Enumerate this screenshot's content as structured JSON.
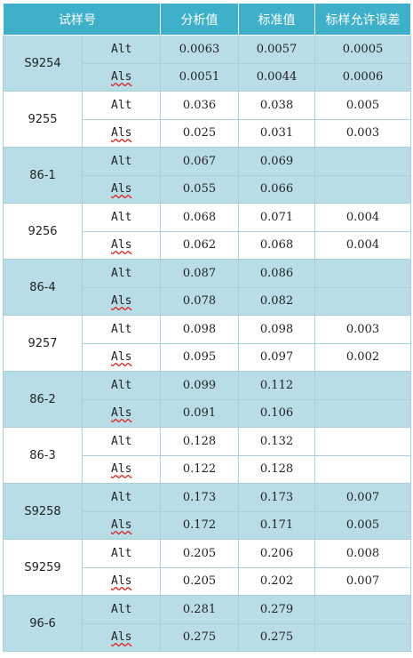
{
  "headers": [
    "试样号",
    "",
    "分析值",
    "标准值",
    "标样允许误差"
  ],
  "groups": [
    {
      "sample": "S9254",
      "rows": [
        {
          "element": "Alt",
          "analysis": "0.0063",
          "standard": "0.0057",
          "tolerance": "0.0005"
        },
        {
          "element": "Als",
          "analysis": "0.0051",
          "standard": "0.0044",
          "tolerance": "0.0006"
        }
      ]
    },
    {
      "sample": "9255",
      "rows": [
        {
          "element": "Alt",
          "analysis": "0.036",
          "standard": "0.038",
          "tolerance": "0.005"
        },
        {
          "element": "Als",
          "analysis": "0.025",
          "standard": "0.031",
          "tolerance": "0.003"
        }
      ]
    },
    {
      "sample": "86-1",
      "rows": [
        {
          "element": "Alt",
          "analysis": "0.067",
          "standard": "0.069",
          "tolerance": ""
        },
        {
          "element": "Als",
          "analysis": "0.055",
          "standard": "0.066",
          "tolerance": ""
        }
      ]
    },
    {
      "sample": "9256",
      "rows": [
        {
          "element": "Alt",
          "analysis": "0.068",
          "standard": "0.071",
          "tolerance": "0.004"
        },
        {
          "element": "Als",
          "analysis": "0.062",
          "standard": "0.068",
          "tolerance": "0.004"
        }
      ]
    },
    {
      "sample": "86-4",
      "rows": [
        {
          "element": "Alt",
          "analysis": "0.087",
          "standard": "0.086",
          "tolerance": ""
        },
        {
          "element": "Als",
          "analysis": "0.078",
          "standard": "0.082",
          "tolerance": ""
        }
      ]
    },
    {
      "sample": "9257",
      "rows": [
        {
          "element": "Alt",
          "analysis": "0.098",
          "standard": "0.098",
          "tolerance": "0.003"
        },
        {
          "element": "Als",
          "analysis": "0.095",
          "standard": "0.097",
          "tolerance": "0.002"
        }
      ]
    },
    {
      "sample": "86-2",
      "rows": [
        {
          "element": "Alt",
          "analysis": "0.099",
          "standard": "0.112",
          "tolerance": ""
        },
        {
          "element": "Als",
          "analysis": "0.091",
          "standard": "0.106",
          "tolerance": ""
        }
      ]
    },
    {
      "sample": "86-3",
      "rows": [
        {
          "element": "Alt",
          "analysis": "0.128",
          "standard": "0.132",
          "tolerance": ""
        },
        {
          "element": "Als",
          "analysis": "0.122",
          "standard": "0.128",
          "tolerance": ""
        }
      ]
    },
    {
      "sample": "S9258",
      "rows": [
        {
          "element": "Alt",
          "analysis": "0.173",
          "standard": "0.173",
          "tolerance": "0.007"
        },
        {
          "element": "Als",
          "analysis": "0.172",
          "standard": "0.171",
          "tolerance": "0.005"
        }
      ]
    },
    {
      "sample": "S9259",
      "rows": [
        {
          "element": "Alt",
          "analysis": "0.205",
          "standard": "0.206",
          "tolerance": "0.008"
        },
        {
          "element": "Als",
          "analysis": "0.205",
          "standard": "0.202",
          "tolerance": "0.007"
        }
      ]
    },
    {
      "sample": "96-6",
      "rows": [
        {
          "element": "Alt",
          "analysis": "0.281",
          "standard": "0.279",
          "tolerance": ""
        },
        {
          "element": "Als",
          "analysis": "0.275",
          "standard": "0.275",
          "tolerance": ""
        }
      ]
    }
  ],
  "colors": {
    "header_bg": "#3fb0c9",
    "shaded_row": "#b9dde7",
    "border": "#a9cfd9"
  }
}
